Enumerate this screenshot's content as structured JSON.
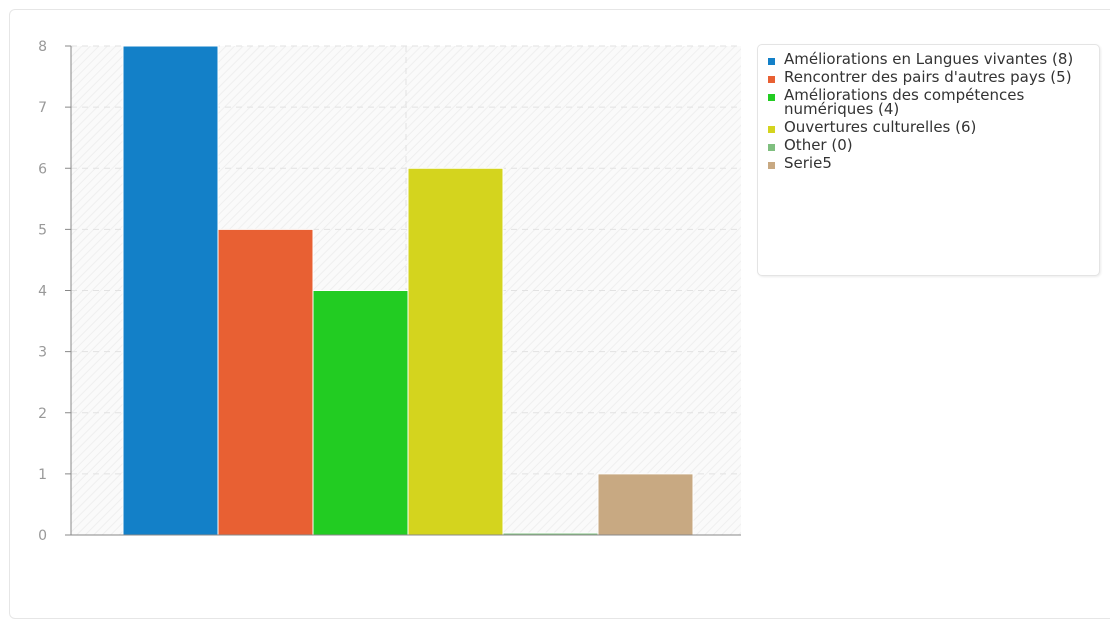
{
  "chart_data": {
    "type": "bar",
    "title": "",
    "xlabel": "",
    "ylabel": "",
    "ylim": [
      0,
      8
    ],
    "yticks": [
      "0",
      "1",
      "2",
      "3",
      "4",
      "5",
      "6",
      "7",
      "8"
    ],
    "grid": true,
    "legend_position": "right",
    "series": [
      {
        "name": "Améliorations en Langues vivantes (8)",
        "value": 8,
        "color": "#1380c8"
      },
      {
        "name": "Rencontrer des pairs d'autres pays (5)",
        "value": 5,
        "color": "#e86033"
      },
      {
        "name": "Améliorations des compétences numériques (4)",
        "value": 4,
        "color": "#22cc22"
      },
      {
        "name": "Ouvertures culturelles (6)",
        "value": 6,
        "color": "#d4d41e"
      },
      {
        "name": "Other (0)",
        "value": 0,
        "color": "#7fbf7f"
      },
      {
        "name": "Serie5",
        "value": 1,
        "color": "#c8a982"
      }
    ]
  }
}
